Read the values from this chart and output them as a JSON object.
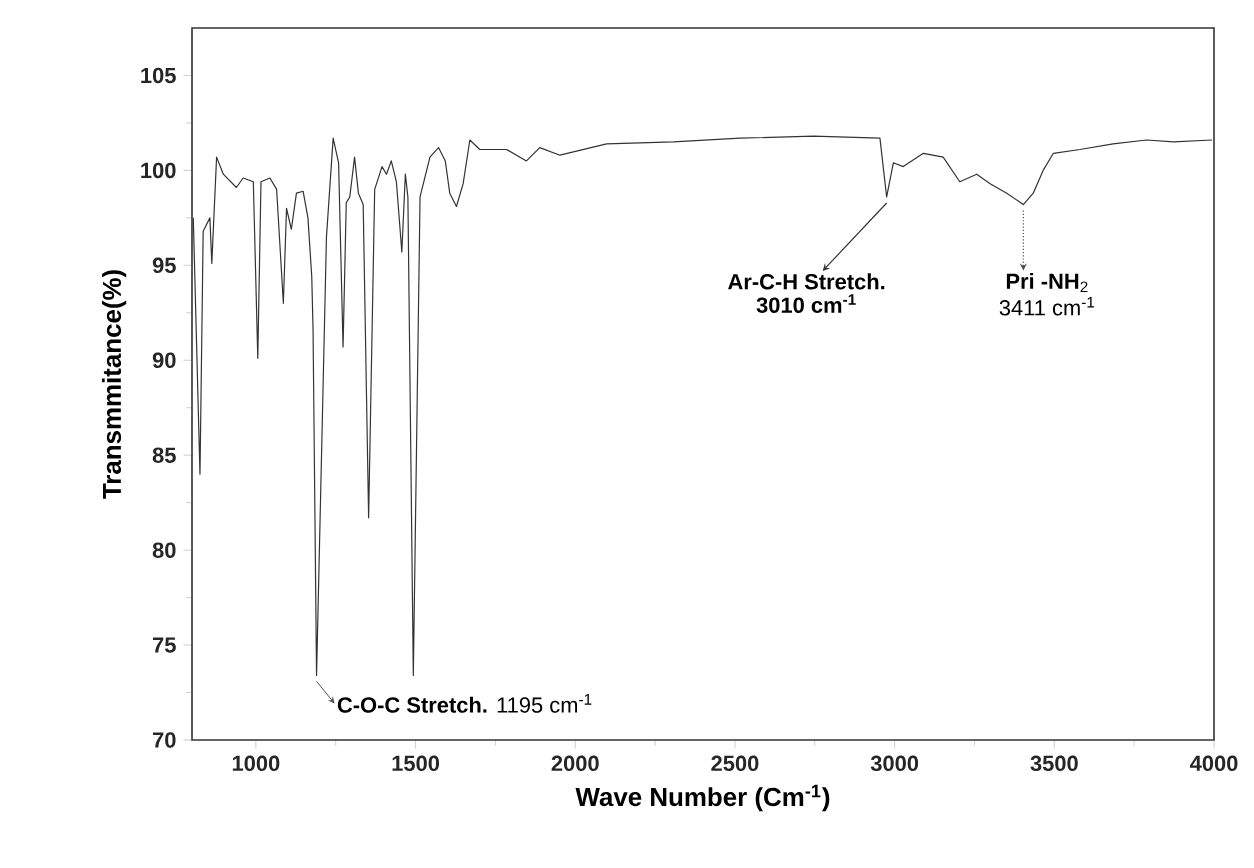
{
  "chart_data": {
    "type": "line",
    "xlabel": "Wave Number (Cm$^{-1}$)",
    "ylabel": "Transmmitance(%)",
    "xlim": [
      800,
      4000
    ],
    "ylim": [
      70,
      107.5
    ],
    "xticks": [
      1000,
      1500,
      2000,
      2500,
      3000,
      3500,
      4000
    ],
    "yticks": [
      70,
      75,
      80,
      85,
      90,
      95,
      100,
      105
    ],
    "marker": "none",
    "line_style": "solid",
    "series": [
      {
        "color": "#333333",
        "x": [
          804,
          825,
          835,
          856,
          862,
          877,
          898,
          939,
          960,
          992,
          1006,
          1016,
          1044,
          1065,
          1086,
          1096,
          1111,
          1127,
          1148,
          1163,
          1175,
          1179,
          1190,
          1221,
          1242,
          1259,
          1273,
          1283,
          1294,
          1309,
          1321,
          1336,
          1353,
          1372,
          1395,
          1409,
          1424,
          1440,
          1457,
          1468,
          1476,
          1493,
          1514,
          1545,
          1572,
          1593,
          1607,
          1628,
          1649,
          1670,
          1701,
          1785,
          1847,
          1889,
          1952,
          2098,
          2307,
          2516,
          2745,
          2954,
          2975,
          2996,
          3027,
          3090,
          3152,
          3204,
          3257,
          3299,
          3351,
          3403,
          3434,
          3465,
          3497,
          3580,
          3684,
          3789,
          3873,
          3994
        ],
        "values": [
          97.5,
          84.0,
          96.8,
          97.5,
          95.1,
          100.7,
          99.8,
          99.1,
          99.6,
          99.4,
          90.1,
          99.4,
          99.6,
          99.0,
          93.0,
          98.0,
          96.9,
          98.8,
          98.9,
          97.5,
          94.4,
          91.6,
          73.4,
          96.5,
          101.7,
          100.4,
          90.7,
          98.3,
          98.6,
          100.7,
          98.8,
          98.2,
          81.7,
          99.0,
          100.2,
          99.8,
          100.5,
          99.4,
          95.7,
          99.8,
          98.6,
          73.4,
          98.6,
          100.7,
          101.2,
          100.5,
          98.8,
          98.1,
          99.3,
          101.6,
          101.1,
          101.1,
          100.5,
          101.2,
          100.8,
          101.4,
          101.5,
          101.7,
          101.8,
          101.7,
          98.6,
          100.4,
          100.2,
          100.9,
          100.7,
          99.4,
          99.8,
          99.3,
          98.8,
          98.2,
          98.8,
          100.0,
          100.9,
          101.1,
          101.4,
          101.6,
          101.5,
          101.6
        ]
      }
    ],
    "annotations": [
      {
        "text": "**C-O-C Stretch.** 1195  cm$^{-1}$",
        "x": 1190,
        "y": 73.4
      },
      {
        "text": "**Ar-C-H Stretch.**",
        "x": 2975,
        "y": 98.6
      },
      "**3010 cm$^{-1}$**",
      {
        "text": "**Pri -NH**$_{2}$",
        "x": 3403,
        "y": 98.2
      },
      "3411 cm$^{-1}$"
    ]
  }
}
